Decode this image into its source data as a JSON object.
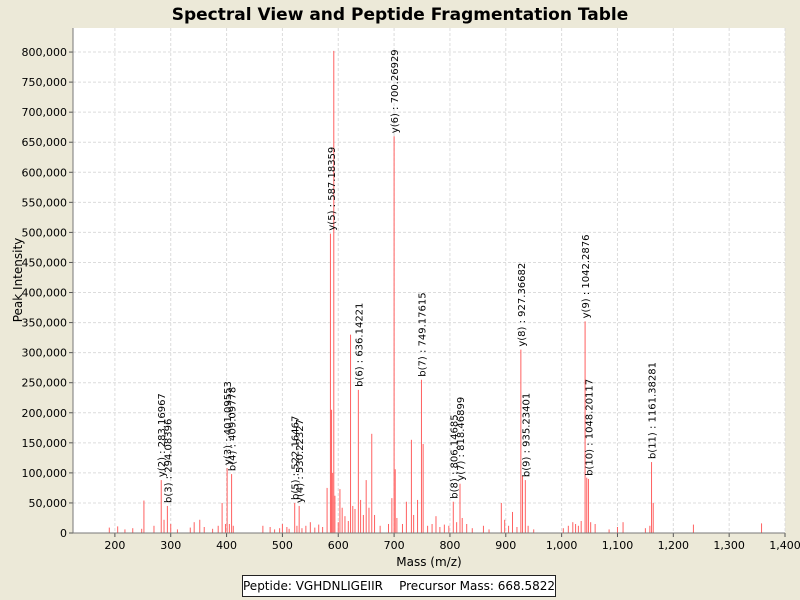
{
  "chart_data": {
    "type": "spectrum",
    "title": "Spectral View and Peptide Fragmentation Table",
    "xlabel": "Mass (m/z)",
    "ylabel": "Peak Intensity",
    "xlim": [
      125,
      1400
    ],
    "ylim": [
      0,
      840000
    ],
    "xticks": [
      "200",
      "300",
      "400",
      "500",
      "600",
      "700",
      "800",
      "900",
      "1,000",
      "1,100",
      "1,200",
      "1,300",
      "1,400"
    ],
    "yticks": [
      "0",
      "50,000",
      "100,000",
      "150,000",
      "200,000",
      "250,000",
      "300,000",
      "350,000",
      "400,000",
      "450,000",
      "500,000",
      "550,000",
      "600,000",
      "650,000",
      "700,000",
      "750,000",
      "800,000"
    ],
    "peak_color": "#ff6060",
    "peaks": [
      {
        "mz": 190,
        "intensity": 9000
      },
      {
        "mz": 205,
        "intensity": 11000
      },
      {
        "mz": 218,
        "intensity": 6000
      },
      {
        "mz": 232,
        "intensity": 8000
      },
      {
        "mz": 248,
        "intensity": 7000
      },
      {
        "mz": 252,
        "intensity": 54000
      },
      {
        "mz": 270,
        "intensity": 12000
      },
      {
        "mz": 283,
        "intensity": 88000
      },
      {
        "mz": 288,
        "intensity": 22000
      },
      {
        "mz": 294,
        "intensity": 45000
      },
      {
        "mz": 300,
        "intensity": 15000
      },
      {
        "mz": 312,
        "intensity": 6000
      },
      {
        "mz": 335,
        "intensity": 9000
      },
      {
        "mz": 342,
        "intensity": 18000
      },
      {
        "mz": 352,
        "intensity": 22000
      },
      {
        "mz": 360,
        "intensity": 10000
      },
      {
        "mz": 375,
        "intensity": 7000
      },
      {
        "mz": 385,
        "intensity": 12000
      },
      {
        "mz": 392,
        "intensity": 50000
      },
      {
        "mz": 398,
        "intensity": 15000
      },
      {
        "mz": 401,
        "intensity": 108000
      },
      {
        "mz": 405,
        "intensity": 15000
      },
      {
        "mz": 409,
        "intensity": 98000
      },
      {
        "mz": 412,
        "intensity": 12000
      },
      {
        "mz": 465,
        "intensity": 12000
      },
      {
        "mz": 478,
        "intensity": 10000
      },
      {
        "mz": 486,
        "intensity": 6000
      },
      {
        "mz": 495,
        "intensity": 8000
      },
      {
        "mz": 500,
        "intensity": 15000
      },
      {
        "mz": 508,
        "intensity": 10000
      },
      {
        "mz": 512,
        "intensity": 7000
      },
      {
        "mz": 522,
        "intensity": 50000
      },
      {
        "mz": 526,
        "intensity": 12000
      },
      {
        "mz": 530,
        "intensity": 45000
      },
      {
        "mz": 535,
        "intensity": 8000
      },
      {
        "mz": 542,
        "intensity": 12000
      },
      {
        "mz": 550,
        "intensity": 18000
      },
      {
        "mz": 558,
        "intensity": 9000
      },
      {
        "mz": 565,
        "intensity": 14000
      },
      {
        "mz": 572,
        "intensity": 10000
      },
      {
        "mz": 580,
        "intensity": 75000
      },
      {
        "mz": 586,
        "intensity": 498000
      },
      {
        "mz": 588,
        "intensity": 205000
      },
      {
        "mz": 590,
        "intensity": 100000
      },
      {
        "mz": 592,
        "intensity": 802000
      },
      {
        "mz": 594,
        "intensity": 62000
      },
      {
        "mz": 600,
        "intensity": 18000
      },
      {
        "mz": 603,
        "intensity": 73000
      },
      {
        "mz": 607,
        "intensity": 42000
      },
      {
        "mz": 612,
        "intensity": 28000
      },
      {
        "mz": 618,
        "intensity": 20000
      },
      {
        "mz": 622,
        "intensity": 330000
      },
      {
        "mz": 626,
        "intensity": 45000
      },
      {
        "mz": 630,
        "intensity": 40000
      },
      {
        "mz": 636,
        "intensity": 238000
      },
      {
        "mz": 640,
        "intensity": 55000
      },
      {
        "mz": 645,
        "intensity": 30000
      },
      {
        "mz": 650,
        "intensity": 88000
      },
      {
        "mz": 655,
        "intensity": 42000
      },
      {
        "mz": 660,
        "intensity": 165000
      },
      {
        "mz": 665,
        "intensity": 30000
      },
      {
        "mz": 675,
        "intensity": 12000
      },
      {
        "mz": 690,
        "intensity": 15000
      },
      {
        "mz": 696,
        "intensity": 58000
      },
      {
        "mz": 700,
        "intensity": 660000
      },
      {
        "mz": 702,
        "intensity": 106000
      },
      {
        "mz": 705,
        "intensity": 25000
      },
      {
        "mz": 715,
        "intensity": 15000
      },
      {
        "mz": 722,
        "intensity": 52000
      },
      {
        "mz": 731,
        "intensity": 155000
      },
      {
        "mz": 735,
        "intensity": 30000
      },
      {
        "mz": 742,
        "intensity": 55000
      },
      {
        "mz": 749,
        "intensity": 255000
      },
      {
        "mz": 752,
        "intensity": 148000
      },
      {
        "mz": 760,
        "intensity": 12000
      },
      {
        "mz": 768,
        "intensity": 15000
      },
      {
        "mz": 775,
        "intensity": 28000
      },
      {
        "mz": 782,
        "intensity": 10000
      },
      {
        "mz": 790,
        "intensity": 14000
      },
      {
        "mz": 798,
        "intensity": 12000
      },
      {
        "mz": 806,
        "intensity": 52000
      },
      {
        "mz": 812,
        "intensity": 18000
      },
      {
        "mz": 818,
        "intensity": 82000
      },
      {
        "mz": 822,
        "intensity": 25000
      },
      {
        "mz": 830,
        "intensity": 15000
      },
      {
        "mz": 840,
        "intensity": 8000
      },
      {
        "mz": 860,
        "intensity": 12000
      },
      {
        "mz": 870,
        "intensity": 6000
      },
      {
        "mz": 892,
        "intensity": 50000
      },
      {
        "mz": 898,
        "intensity": 22000
      },
      {
        "mz": 905,
        "intensity": 12000
      },
      {
        "mz": 912,
        "intensity": 35000
      },
      {
        "mz": 920,
        "intensity": 10000
      },
      {
        "mz": 927,
        "intensity": 305000
      },
      {
        "mz": 930,
        "intensity": 95000
      },
      {
        "mz": 935,
        "intensity": 88000
      },
      {
        "mz": 940,
        "intensity": 12000
      },
      {
        "mz": 950,
        "intensity": 6000
      },
      {
        "mz": 1003,
        "intensity": 8000
      },
      {
        "mz": 1012,
        "intensity": 12000
      },
      {
        "mz": 1020,
        "intensity": 18000
      },
      {
        "mz": 1025,
        "intensity": 15000
      },
      {
        "mz": 1030,
        "intensity": 12000
      },
      {
        "mz": 1035,
        "intensity": 20000
      },
      {
        "mz": 1042,
        "intensity": 352000
      },
      {
        "mz": 1045,
        "intensity": 92000
      },
      {
        "mz": 1048,
        "intensity": 90000
      },
      {
        "mz": 1052,
        "intensity": 18000
      },
      {
        "mz": 1060,
        "intensity": 15000
      },
      {
        "mz": 1085,
        "intensity": 6000
      },
      {
        "mz": 1100,
        "intensity": 10000
      },
      {
        "mz": 1110,
        "intensity": 18000
      },
      {
        "mz": 1150,
        "intensity": 8000
      },
      {
        "mz": 1158,
        "intensity": 12000
      },
      {
        "mz": 1161,
        "intensity": 118000
      },
      {
        "mz": 1164,
        "intensity": 50000
      },
      {
        "mz": 1236,
        "intensity": 14000
      },
      {
        "mz": 1358,
        "intensity": 16000
      }
    ],
    "annotations": [
      {
        "label": "y(2) : 283.16967",
        "mz": 283,
        "intensity": 88000
      },
      {
        "label": "b(3) : 294.08396",
        "mz": 294,
        "intensity": 45000
      },
      {
        "label": "y(3) : 401.09553",
        "mz": 401,
        "intensity": 108000
      },
      {
        "label": "b(4) : 409.09778",
        "mz": 409,
        "intensity": 98000
      },
      {
        "label": "b(5) : 522.16467",
        "mz": 522,
        "intensity": 50000
      },
      {
        "label": "y(4) : 530.22327",
        "mz": 530,
        "intensity": 45000
      },
      {
        "label": "y(5) : 587.18359",
        "mz": 587,
        "intensity": 498000
      },
      {
        "label": "b(6) : 636.14221",
        "mz": 636,
        "intensity": 238000
      },
      {
        "label": "y(6) : 700.26929",
        "mz": 700,
        "intensity": 660000
      },
      {
        "label": "b(7) : 749.17615",
        "mz": 749,
        "intensity": 255000
      },
      {
        "label": "b(8) : 806.14685",
        "mz": 806,
        "intensity": 52000
      },
      {
        "label": "y(7) : 818.46899",
        "mz": 818,
        "intensity": 82000
      },
      {
        "label": "y(8) : 927.36682",
        "mz": 927,
        "intensity": 305000
      },
      {
        "label": "b(9) : 935.23401",
        "mz": 935,
        "intensity": 88000
      },
      {
        "label": "y(9) : 1042.2876",
        "mz": 1042,
        "intensity": 352000
      },
      {
        "label": "b(10) : 1048.20117",
        "mz": 1048,
        "intensity": 90000
      },
      {
        "label": "b(11) : 1161.38281",
        "mz": 1161,
        "intensity": 118000
      }
    ]
  },
  "footer": {
    "peptide_text": "Peptide: VGHDNLIGEIIR",
    "precursor_text": "Precursor Mass: 668.5822"
  }
}
